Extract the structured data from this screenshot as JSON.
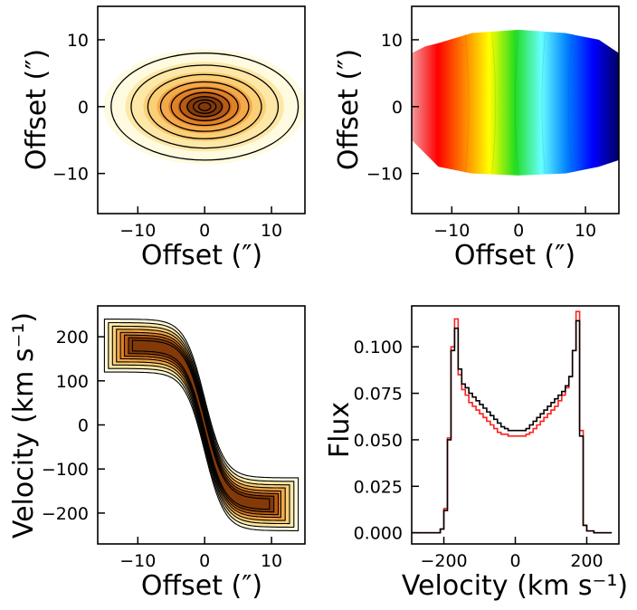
{
  "figure": {
    "panels": [
      {
        "id": "moment0",
        "xlabel": "Offset (″)",
        "ylabel": "Offset (″)"
      },
      {
        "id": "velocity-field",
        "xlabel": "Offset (″)",
        "ylabel": "Offset (″)"
      },
      {
        "id": "pv-diagram",
        "xlabel": "Offset (″)",
        "ylabel": "Velocity (km s⁻¹)"
      },
      {
        "id": "spectrum",
        "xlabel": "Velocity (km s⁻¹)",
        "ylabel": "Flux"
      }
    ]
  },
  "colors": {
    "contour_line": "#000000",
    "moment0_map": [
      "#fffbe0",
      "#fde8a8",
      "#fbcf75",
      "#f3a94a",
      "#df8127",
      "#b85b15",
      "#843a08"
    ],
    "velocity_map": [
      "#f2999c",
      "#ff0000",
      "#ff8000",
      "#ffff00",
      "#22dd22",
      "#66ffff",
      "#0080ff",
      "#0000ff",
      "#000060"
    ],
    "spectrum_series": [
      "#000000",
      "#ff2020"
    ]
  },
  "chart_data": [
    {
      "type": "heatmap",
      "title": "",
      "xlabel": "Offset (″)",
      "ylabel": "Offset (″)",
      "xlim": [
        -16,
        15
      ],
      "ylim": [
        -16,
        15
      ],
      "xticks": [
        -10,
        0,
        10
      ],
      "yticks": [
        -10,
        0,
        10
      ],
      "description_values": {
        "peak_position": [
          0,
          0
        ],
        "outer_contour_semi_axes": [
          14,
          8
        ]
      },
      "contour_semi_axes": [
        [
          14,
          8
        ],
        [
          11,
          6.2
        ],
        [
          8.5,
          4.8
        ],
        [
          6.6,
          3.7
        ],
        [
          5,
          2.8
        ],
        [
          3.7,
          2.1
        ],
        [
          2.6,
          1.5
        ],
        [
          1.7,
          1.0
        ],
        [
          0.9,
          0.6
        ]
      ],
      "contour_levels": 9,
      "colormap": "YlOrBr"
    },
    {
      "type": "heatmap",
      "title": "",
      "xlabel": "Offset (″)",
      "ylabel": "Offset (″)",
      "xlim": [
        -16,
        15
      ],
      "ylim": [
        -16,
        15
      ],
      "xticks": [
        -10,
        0,
        10
      ],
      "yticks": [
        -10,
        0,
        10
      ],
      "map_extent_x": [
        -16,
        15
      ],
      "map_extent_y": [
        -10,
        11
      ],
      "colormap": "jet_r",
      "velocity_sign": "positive at negative offset, negative at positive offset"
    },
    {
      "type": "heatmap",
      "title": "",
      "xlabel": "Offset (″)",
      "ylabel": "Velocity (km s⁻¹)",
      "xlim": [
        -16,
        15
      ],
      "ylim": [
        -270,
        270
      ],
      "xticks": [
        -10,
        0,
        10
      ],
      "yticks": [
        -200,
        -100,
        0,
        100,
        200
      ],
      "rotation_curve": {
        "vmax": 180,
        "turnover_offset": 3
      },
      "contour_widths": [
        60,
        52,
        44,
        37,
        30,
        24,
        18,
        12
      ],
      "colormap": "YlOrBr"
    },
    {
      "type": "line",
      "title": "",
      "xlabel": "Velocity (km s⁻¹)",
      "ylabel": "Flux",
      "xlim": [
        -290,
        290
      ],
      "ylim": [
        -0.006,
        0.122
      ],
      "xticks": [
        -200,
        0,
        200
      ],
      "yticks": [
        0.0,
        0.025,
        0.05,
        0.075,
        0.1
      ],
      "ytick_labels": [
        "0.000",
        "0.025",
        "0.050",
        "0.075",
        "0.100"
      ],
      "xtick_labels": [
        "−200",
        "0",
        "200"
      ],
      "x": [
        -290,
        -270,
        -250,
        -230,
        -220,
        -210,
        -200,
        -190,
        -180,
        -170,
        -160,
        -150,
        -140,
        -130,
        -120,
        -110,
        -100,
        -90,
        -80,
        -70,
        -60,
        -50,
        -40,
        -30,
        -20,
        -10,
        0,
        10,
        20,
        30,
        40,
        50,
        60,
        70,
        80,
        90,
        100,
        110,
        120,
        130,
        140,
        150,
        160,
        170,
        180,
        190,
        200,
        220,
        240,
        260,
        270
      ],
      "series": [
        {
          "values": [
            0,
            0,
            0,
            0,
            0,
            0.002,
            0.012,
            0.05,
            0.098,
            0.11,
            0.088,
            0.08,
            0.078,
            0.075,
            0.073,
            0.071,
            0.069,
            0.067,
            0.065,
            0.063,
            0.061,
            0.059,
            0.057,
            0.056,
            0.055,
            0.055,
            0.055,
            0.055,
            0.055,
            0.056,
            0.058,
            0.06,
            0.062,
            0.064,
            0.066,
            0.068,
            0.07,
            0.072,
            0.074,
            0.076,
            0.079,
            0.084,
            0.098,
            0.114,
            0.052,
            0.004,
            0.001,
            0,
            0,
            0,
            0
          ]
        },
        {
          "values": [
            0,
            0,
            0,
            0,
            0,
            0.002,
            0.013,
            0.051,
            0.1,
            0.115,
            0.085,
            0.077,
            0.074,
            0.07,
            0.068,
            0.066,
            0.064,
            0.062,
            0.06,
            0.058,
            0.056,
            0.054,
            0.053,
            0.053,
            0.052,
            0.052,
            0.052,
            0.052,
            0.052,
            0.053,
            0.054,
            0.056,
            0.058,
            0.06,
            0.062,
            0.064,
            0.066,
            0.068,
            0.071,
            0.074,
            0.078,
            0.084,
            0.098,
            0.119,
            0.055,
            0.004,
            0.001,
            0,
            0,
            0,
            0
          ]
        }
      ]
    }
  ]
}
